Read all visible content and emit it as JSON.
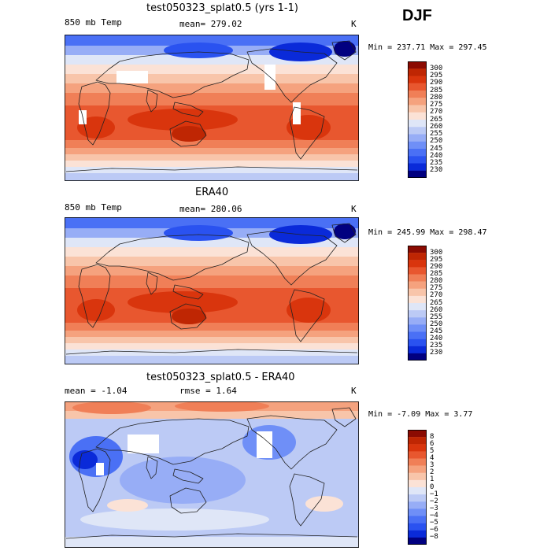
{
  "season": "DJF",
  "colors": {
    "temp_scale": [
      "#010080",
      "#0a2ad9",
      "#2a52f0",
      "#4a70f5",
      "#6f8ff7",
      "#97adf6",
      "#bccaf5",
      "#dfe6f7",
      "#fbe2d6",
      "#f8c5aa",
      "#f5a27e",
      "#f07f57",
      "#e8572f",
      "#d9350d",
      "#bf2603",
      "#8b0b02"
    ],
    "diff_scale": [
      "#010080",
      "#0a2ad9",
      "#2a52f0",
      "#4a70f5",
      "#6f8ff7",
      "#97adf6",
      "#bccaf5",
      "#dfe6f7",
      "#fbe2d6",
      "#f8c5aa",
      "#f5a27e",
      "#f07f57",
      "#e8572f",
      "#d9350d",
      "#bf2603",
      "#8b0b02"
    ],
    "land_outline": "#222222",
    "missing": "#ffffff"
  },
  "panels": [
    {
      "title": "test050323_splat0.5 (yrs 1-1)",
      "left_label": "850 mb Temp",
      "mid_label": "mean= 279.02",
      "unit": "K",
      "minmax": "Min = 237.71 Max = 297.45"
    },
    {
      "title": "ERA40",
      "left_label": "850 mb Temp",
      "mid_label": "mean= 280.06",
      "unit": "K",
      "minmax": "Min = 245.99 Max = 298.47"
    },
    {
      "title": "test050323_splat0.5 - ERA40",
      "left_label": "mean =  -1.04",
      "mid_label": "rmse =   1.64",
      "unit": "K",
      "minmax": "Min =  -7.09 Max =   3.77"
    }
  ],
  "chart_data": [
    {
      "type": "heatmap",
      "title": "test050323_splat0.5 (yrs 1-1)",
      "variable": "850 mb Temp",
      "units": "K",
      "mean": 279.02,
      "min": 237.71,
      "max": 297.45,
      "colorbar_ticks": [
        "300",
        "295",
        "290",
        "285",
        "280",
        "275",
        "270",
        "265",
        "260",
        "255",
        "250",
        "245",
        "240",
        "235",
        "230"
      ]
    },
    {
      "type": "heatmap",
      "title": "ERA40",
      "variable": "850 mb Temp",
      "units": "K",
      "mean": 280.06,
      "min": 245.99,
      "max": 298.47,
      "colorbar_ticks": [
        "300",
        "295",
        "290",
        "285",
        "280",
        "275",
        "270",
        "265",
        "260",
        "255",
        "250",
        "245",
        "240",
        "235",
        "230"
      ]
    },
    {
      "type": "heatmap",
      "title": "test050323_splat0.5 - ERA40",
      "units": "K",
      "mean": -1.04,
      "rmse": 1.64,
      "min": -7.09,
      "max": 3.77,
      "colorbar_ticks": [
        "8",
        "6",
        "5",
        "4",
        "3",
        "2",
        "1",
        "0",
        "−1",
        "−2",
        "−3",
        "−4",
        "−5",
        "−6",
        "−8"
      ]
    }
  ]
}
